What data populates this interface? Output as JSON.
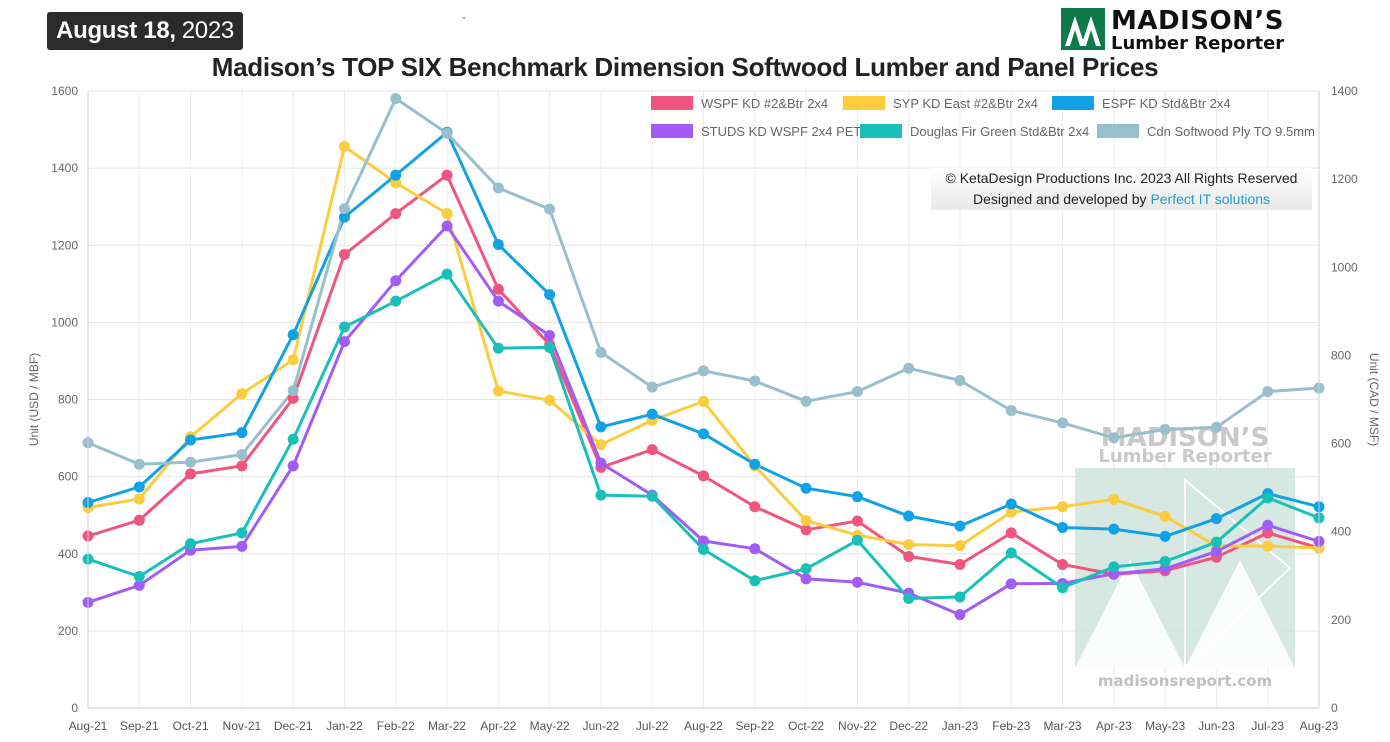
{
  "header": {
    "date_bold": "August 18,",
    "date_year": "2023",
    "stray_mark": "-",
    "title": "Madison’s TOP SIX Benchmark Dimension Softwood Lumber and Panel Prices",
    "logo_line1": "MADISON’S",
    "logo_line2": "Lumber Reporter"
  },
  "watermark": {
    "line1": "MADISON’S",
    "line2": "Lumber Reporter",
    "url": "madisonsreport.com"
  },
  "credits": {
    "line1": "© KetaDesign Productions Inc. 2023 All Rights Reserved",
    "line2_prefix": "Designed and developed by",
    "line2_link": "Perfect IT solutions"
  },
  "chart_data": {
    "type": "line",
    "categories": [
      "Aug-21",
      "Sep-21",
      "Oct-21",
      "Nov-21",
      "Dec-21",
      "Jan-22",
      "Feb-22",
      "Mar-22",
      "Apr-22",
      "May-22",
      "Jun-22",
      "Jul-22",
      "Aug-22",
      "Sep-22",
      "Oct-22",
      "Nov-22",
      "Dec-22",
      "Jan-23",
      "Feb-23",
      "Mar-23",
      "Apr-23",
      "May-23",
      "Jun-23",
      "Jul-23",
      "Aug-23"
    ],
    "ylabel": "Unit (USD / MBF)",
    "y2label": "Unit (CAD / MSF)",
    "ylim": [
      0,
      1600
    ],
    "y2lim": [
      0,
      1400
    ],
    "yticks": [
      0,
      200,
      400,
      600,
      800,
      1000,
      1200,
      1400,
      1600
    ],
    "y2ticks": [
      0,
      200,
      400,
      600,
      800,
      1000,
      1200,
      1400
    ],
    "grid": true,
    "legend_position": "top-right",
    "series": [
      {
        "name": "WSPF KD #2&Btr 2x4",
        "color": "#f0557f",
        "axis": "left",
        "values": [
          446,
          487,
          607,
          628,
          803,
          1176,
          1282,
          1382,
          1086,
          942,
          624,
          670,
          602,
          522,
          462,
          485,
          393,
          372,
          454,
          372,
          347,
          356,
          391,
          454,
          415
        ]
      },
      {
        "name": "SYP KD East #2&Btr 2x4",
        "color": "#fbcc3e",
        "axis": "left",
        "values": [
          520,
          542,
          703,
          815,
          903,
          1456,
          1362,
          1282,
          822,
          798,
          683,
          746,
          795,
          628,
          486,
          448,
          424,
          421,
          508,
          522,
          541,
          497,
          420,
          420,
          415
        ]
      },
      {
        "name": "ESPF KD Std&Btr 2x4",
        "color": "#11a2e6",
        "axis": "left",
        "values": [
          533,
          573,
          695,
          714,
          968,
          1273,
          1382,
          1493,
          1202,
          1072,
          729,
          762,
          711,
          632,
          570,
          548,
          498,
          472,
          529,
          468,
          464,
          445,
          491,
          556,
          522
        ]
      },
      {
        "name": "STUDS KD WSPF 2x4 PET",
        "color": "#a25cf6",
        "axis": "left",
        "values": [
          274,
          318,
          409,
          419,
          628,
          950,
          1108,
          1250,
          1055,
          966,
          635,
          552,
          433,
          413,
          335,
          326,
          298,
          242,
          322,
          323,
          348,
          361,
          406,
          474,
          432
        ]
      },
      {
        "name": "Douglas Fir Green Std&Btr 2x4",
        "color": "#19c0b7",
        "axis": "left",
        "values": [
          386,
          341,
          426,
          454,
          697,
          988,
          1055,
          1125,
          933,
          935,
          552,
          549,
          411,
          330,
          361,
          435,
          284,
          288,
          402,
          312,
          366,
          380,
          430,
          545,
          493
        ]
      },
      {
        "name": "Cdn Softwood Ply TO 9.5mm",
        "color": "#97bfcc",
        "axis": "right",
        "values": [
          602,
          553,
          558,
          575,
          720,
          1133,
          1383,
          1304,
          1180,
          1132,
          807,
          728,
          765,
          742,
          696,
          718,
          771,
          743,
          675,
          647,
          613,
          632,
          637,
          718,
          726
        ]
      }
    ]
  }
}
